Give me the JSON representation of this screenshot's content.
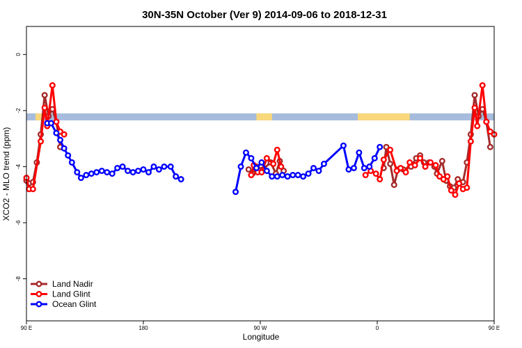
{
  "chart_data": {
    "type": "line",
    "title": "30N-35N October (Ver 9)   2014-09-06 to 2018-12-31",
    "xlabel": "Longitude",
    "ylabel": "XCO2 - MLO trend (ppm)",
    "xlim": [
      90,
      450
    ],
    "ylim": [
      -9.5,
      1
    ],
    "x_ticks": [
      {
        "value": 90,
        "label": "90 E"
      },
      {
        "value": 180,
        "label": "180"
      },
      {
        "value": 270,
        "label": "90 W"
      },
      {
        "value": 360,
        "label": "0"
      },
      {
        "value": 450,
        "label": "90 E"
      },
      {
        "value": 540,
        "label": "180"
      }
    ],
    "y_ticks": [
      {
        "value": 0,
        "label": "0"
      },
      {
        "value": -2,
        "label": "-2"
      },
      {
        "value": -4,
        "label": "-4"
      },
      {
        "value": -6,
        "label": "-6"
      },
      {
        "value": -8,
        "label": "-8"
      }
    ],
    "grid": false,
    "legend_position": "bottom-left",
    "land_mask_band": {
      "y_top": -2.1,
      "y_bottom": -2.35,
      "ocean_color": "#a7bcdc",
      "land_color": "#f9d77b",
      "land_segments": [
        [
          97,
          103
        ],
        [
          267,
          279
        ],
        [
          345,
          385
        ],
        [
          534,
          538
        ]
      ]
    },
    "series": [
      {
        "name": "Land Nadir",
        "color": "#a52a2a",
        "points": [
          [
            90,
            -4.5
          ],
          [
            92,
            -4.6
          ],
          [
            95,
            -4.55
          ],
          [
            98,
            -3.85
          ],
          [
            101,
            -2.85
          ],
          [
            104,
            -1.45
          ],
          [
            107,
            -2.2
          ],
          [
            110,
            -1.95
          ],
          [
            113,
            -2.4
          ],
          [
            116,
            -3.3
          ],
          [
            261,
            -4.1
          ],
          [
            264,
            -4.25
          ],
          [
            267,
            -4.0
          ],
          [
            272,
            -4.1
          ],
          [
            278,
            -3.85
          ],
          [
            282,
            -4.25
          ],
          [
            285,
            -3.8
          ],
          [
            288,
            -4.15
          ],
          [
            365,
            -4.05
          ],
          [
            367,
            -3.3
          ],
          [
            370,
            -3.9
          ],
          [
            373,
            -4.65
          ],
          [
            376,
            -4.1
          ],
          [
            380,
            -4.1
          ],
          [
            386,
            -4.0
          ],
          [
            390,
            -3.7
          ],
          [
            393,
            -3.6
          ],
          [
            396,
            -3.85
          ],
          [
            400,
            -3.85
          ],
          [
            404,
            -4.0
          ],
          [
            406,
            -4.25
          ],
          [
            410,
            -3.8
          ],
          [
            413,
            -4.5
          ],
          [
            416,
            -4.7
          ],
          [
            419,
            -4.75
          ],
          [
            422,
            -4.45
          ],
          [
            426,
            -4.55
          ],
          [
            429,
            -3.85
          ],
          [
            432,
            -2.85
          ],
          [
            435,
            -1.45
          ],
          [
            438,
            -2.2
          ],
          [
            441,
            -1.95
          ],
          [
            444,
            -2.4
          ],
          [
            447,
            -3.3
          ]
        ]
      },
      {
        "name": "Land Glint",
        "color": "#ff0000",
        "points": [
          [
            90,
            -4.4
          ],
          [
            92,
            -4.8
          ],
          [
            95,
            -4.8
          ],
          [
            101,
            -3.1
          ],
          [
            104,
            -1.9
          ],
          [
            106,
            -2.55
          ],
          [
            110,
            -1.1
          ],
          [
            113,
            -2.4
          ],
          [
            116,
            -2.75
          ],
          [
            119,
            -2.85
          ],
          [
            263,
            -4.3
          ],
          [
            265,
            -3.95
          ],
          [
            268,
            -4.2
          ],
          [
            271,
            -4.2
          ],
          [
            275,
            -3.7
          ],
          [
            280,
            -3.9
          ],
          [
            283,
            -3.4
          ],
          [
            286,
            -4.0
          ],
          [
            351,
            -4.3
          ],
          [
            355,
            -4.15
          ],
          [
            359,
            -4.25
          ],
          [
            362,
            -4.45
          ],
          [
            365,
            -3.75
          ],
          [
            370,
            -3.4
          ],
          [
            375,
            -4.15
          ],
          [
            378,
            -4.05
          ],
          [
            382,
            -4.2
          ],
          [
            385,
            -3.85
          ],
          [
            389,
            -3.95
          ],
          [
            393,
            -3.7
          ],
          [
            397,
            -4.0
          ],
          [
            401,
            -3.85
          ],
          [
            405,
            -3.95
          ],
          [
            408,
            -4.35
          ],
          [
            411,
            -4.45
          ],
          [
            414,
            -4.35
          ],
          [
            417,
            -4.85
          ],
          [
            420,
            -5.0
          ],
          [
            423,
            -4.6
          ],
          [
            426,
            -4.8
          ],
          [
            429,
            -4.75
          ],
          [
            432,
            -3.1
          ],
          [
            435,
            -1.9
          ],
          [
            437,
            -2.55
          ],
          [
            441,
            -1.1
          ],
          [
            444,
            -2.4
          ],
          [
            447,
            -2.75
          ],
          [
            450,
            -2.85
          ]
        ]
      },
      {
        "name": "Ocean Glint",
        "color": "#0000ff",
        "points": [
          [
            106,
            -2.45
          ],
          [
            109,
            -2.45
          ],
          [
            113,
            -2.8
          ],
          [
            116,
            -3.05
          ],
          [
            119,
            -3.35
          ],
          [
            122,
            -3.6
          ],
          [
            125,
            -3.85
          ],
          [
            129,
            -4.2
          ],
          [
            132,
            -4.4
          ],
          [
            136,
            -4.3
          ],
          [
            140,
            -4.25
          ],
          [
            144,
            -4.2
          ],
          [
            148,
            -4.15
          ],
          [
            152,
            -4.2
          ],
          [
            156,
            -4.25
          ],
          [
            160,
            -4.05
          ],
          [
            164,
            -4.0
          ],
          [
            168,
            -4.15
          ],
          [
            172,
            -4.2
          ],
          [
            176,
            -4.15
          ],
          [
            180,
            -4.1
          ],
          [
            184,
            -4.2
          ],
          [
            188,
            -4.0
          ],
          [
            192,
            -4.1
          ],
          [
            196,
            -4.0
          ],
          [
            201,
            -4.0
          ],
          [
            205,
            -4.35
          ],
          [
            209,
            -4.45
          ],
          [
            251,
            -4.9
          ],
          [
            255,
            -4.0
          ],
          [
            259,
            -3.5
          ],
          [
            263,
            -3.7
          ],
          [
            267,
            -4.05
          ],
          [
            271,
            -3.85
          ],
          [
            275,
            -4.15
          ],
          [
            279,
            -4.35
          ],
          [
            283,
            -4.35
          ],
          [
            287,
            -4.3
          ],
          [
            291,
            -4.35
          ],
          [
            295,
            -4.3
          ],
          [
            299,
            -4.3
          ],
          [
            303,
            -4.35
          ],
          [
            307,
            -4.25
          ],
          [
            311,
            -4.05
          ],
          [
            315,
            -4.15
          ],
          [
            319,
            -3.9
          ],
          [
            334,
            -3.25
          ],
          [
            338,
            -4.1
          ],
          [
            342,
            -4.05
          ],
          [
            346,
            -3.5
          ],
          [
            350,
            -4.05
          ],
          [
            354,
            -4.0
          ],
          [
            358,
            -3.7
          ],
          [
            362,
            -3.3
          ]
        ]
      }
    ]
  }
}
